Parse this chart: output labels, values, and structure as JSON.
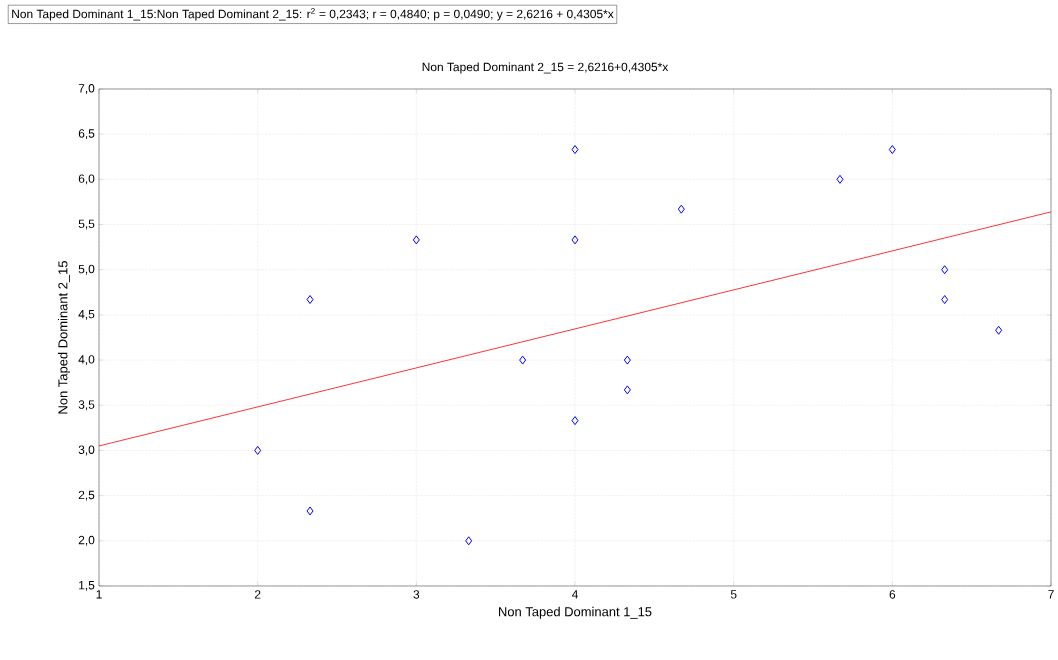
{
  "chart_data": {
    "type": "scatter",
    "title": "Non Taped Dominant 1_15:Non Taped Dominant 2_15:  r$^{2}$ = 0,2343;  r = 0,4840; p = 0,0490;  y = 2,6216 + 0,4305*x",
    "subtitle": "Non Taped Dominant 2_15 = 2,6216+0,4305*x",
    "xlabel": "Non Taped Dominant 1_15",
    "ylabel": "Non Taped Dominant 2_15",
    "xlim": [
      1,
      7
    ],
    "ylim": [
      1.5,
      7.0
    ],
    "xticks": [
      1,
      2,
      3,
      4,
      5,
      6,
      7
    ],
    "yticks": [
      {
        "value": 1.5,
        "label": "1,5"
      },
      {
        "value": 2.0,
        "label": "2,0"
      },
      {
        "value": 2.5,
        "label": "2,5"
      },
      {
        "value": 3.0,
        "label": "3,0"
      },
      {
        "value": 3.5,
        "label": "3,5"
      },
      {
        "value": 4.0,
        "label": "4,0"
      },
      {
        "value": 4.5,
        "label": "4,5"
      },
      {
        "value": 5.0,
        "label": "5,0"
      },
      {
        "value": 5.5,
        "label": "5,5"
      },
      {
        "value": 6.0,
        "label": "6,0"
      },
      {
        "value": 6.5,
        "label": "6,5"
      },
      {
        "value": 7.0,
        "label": "7,0"
      }
    ],
    "grid": true,
    "series": [
      {
        "marker": "diamond",
        "color": "#0000ff",
        "x": [
          2,
          2.33,
          2.33,
          3,
          3.33,
          3.67,
          4,
          4,
          4,
          4.33,
          4.33,
          4.67,
          5.67,
          6,
          6.33,
          6.33,
          6.67
        ],
        "values": [
          3.0,
          4.67,
          2.33,
          5.33,
          2.0,
          4.0,
          6.33,
          5.33,
          3.33,
          4.0,
          3.67,
          5.67,
          6.0,
          6.33,
          5.0,
          4.67,
          4.33
        ]
      },
      {
        "type": "line",
        "color": "#ff0000",
        "x": [
          1,
          7
        ],
        "values": [
          3.05,
          5.64
        ]
      }
    ]
  }
}
